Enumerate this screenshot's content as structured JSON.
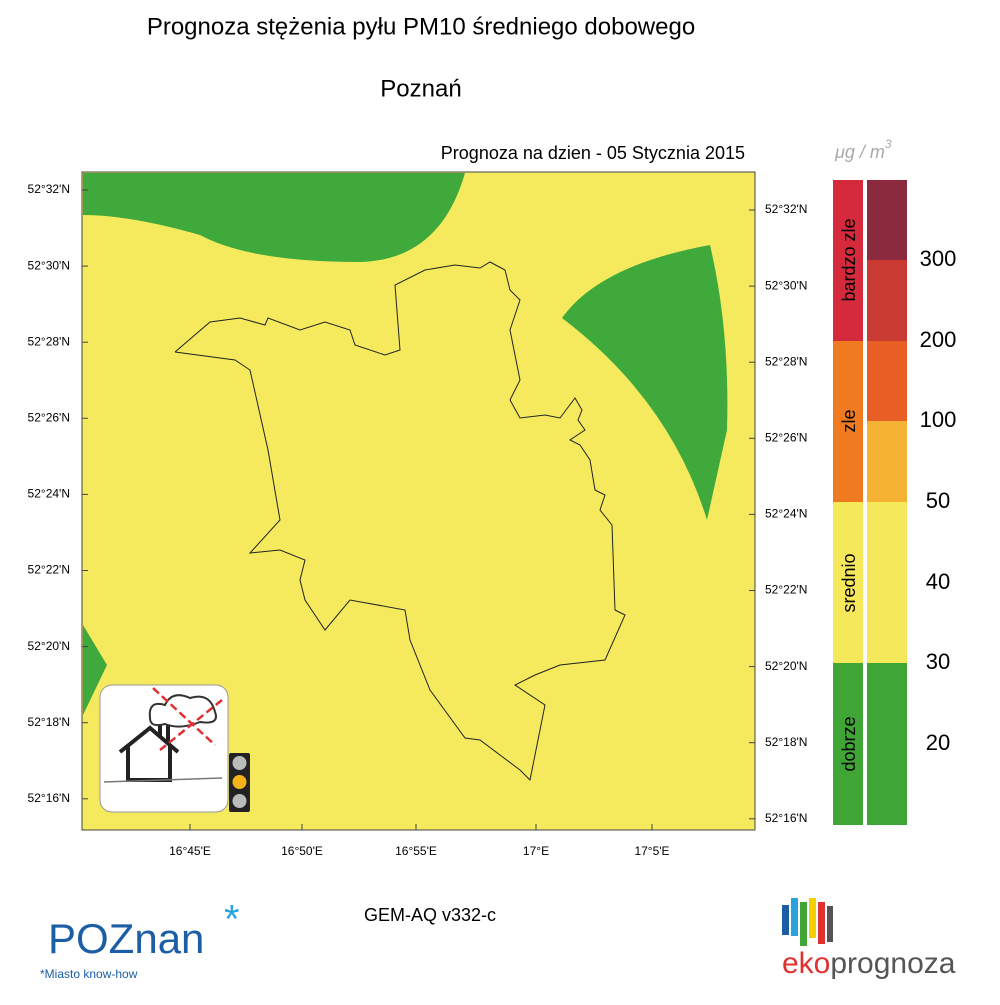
{
  "title": "Prognoza stężenia pyłu PM10 średniego dobowego",
  "subtitle": "Poznań",
  "forecast_date": "Prognoza na dzien -  05 Stycznia 2015",
  "unit": {
    "base": "μg / m",
    "exponent": "3"
  },
  "map": {
    "lat_labels_left": [
      "52°32'N",
      "52°30'N",
      "52°28'N",
      "52°26'N",
      "52°24'N",
      "52°22'N",
      "52°20'N",
      "52°18'N",
      "52°16'N"
    ],
    "lat_labels_right": [
      "52°32'N",
      "52°30'N",
      "52°28'N",
      "52°26'N",
      "52°24'N",
      "52°22'N",
      "52°20'N",
      "52°18'N",
      "52°16'N"
    ],
    "lon_labels": [
      "16°45'E",
      "16°50'E",
      "16°55'E",
      "17°E",
      "17°5'E"
    ]
  },
  "legend": {
    "categories": [
      "bardzo zle",
      "zle",
      "srednio",
      "dobrze"
    ],
    "thresholds": [
      300,
      200,
      100,
      50,
      40,
      30,
      20
    ]
  },
  "footer": {
    "model": "GEM-AQ v332-c",
    "logo_left": "POZnan",
    "logo_left_star": "*",
    "tagline": "*Miasto know-how",
    "logo_right_prefix": "eko",
    "logo_right_suffix": "prognoza"
  }
}
